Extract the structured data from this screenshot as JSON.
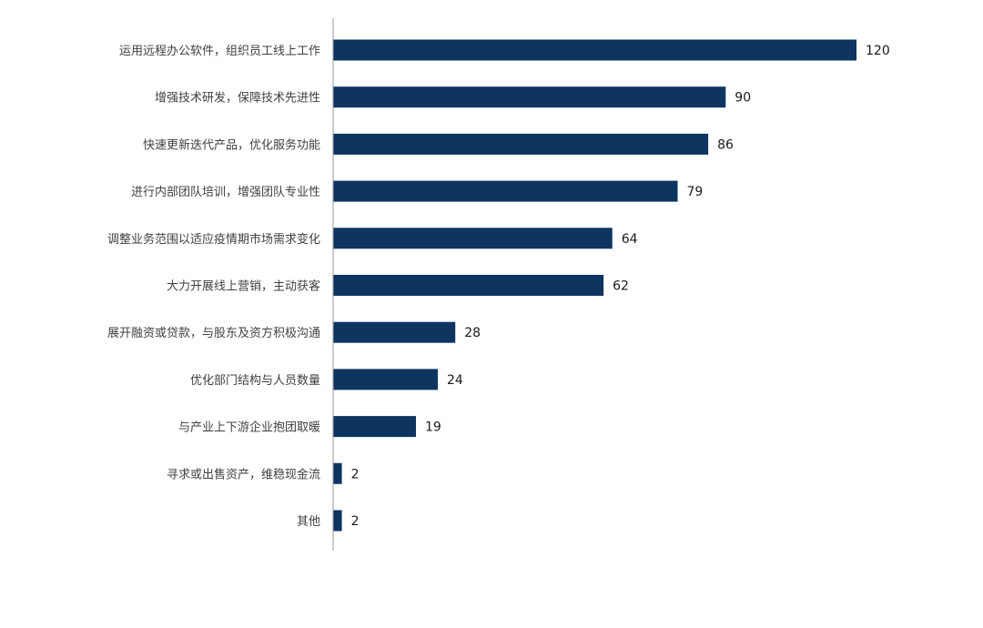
{
  "chart_data": {
    "type": "bar",
    "orientation": "horizontal",
    "categories": [
      "运用远程办公软件，组织员工线上工作",
      "增强技术研发，保障技术先进性",
      "快速更新迭代产品，优化服务功能",
      "进行内部团队培训，增强团队专业性",
      "调整业务范围以适应疫情期市场需求变化",
      "大力开展线上营销，主动获客",
      "展开融资或贷款，与股东及资方积极沟通",
      "优化部门结构与人员数量",
      "与产业上下游企业抱团取暖",
      "寻求或出售资产，维稳现金流",
      "其他"
    ],
    "values": [
      120,
      90,
      86,
      79,
      64,
      62,
      28,
      24,
      19,
      2,
      2
    ],
    "value_labels": [
      "120",
      "90",
      "86",
      "79",
      "64",
      "62",
      "28",
      "24",
      "19",
      "2",
      "2"
    ],
    "title": "",
    "xlabel": "",
    "ylabel": "",
    "xlim": [
      0,
      120
    ],
    "grid": false,
    "legend": "none",
    "bar_color": "#0d3560",
    "axis_color": "#9a9a9a"
  }
}
